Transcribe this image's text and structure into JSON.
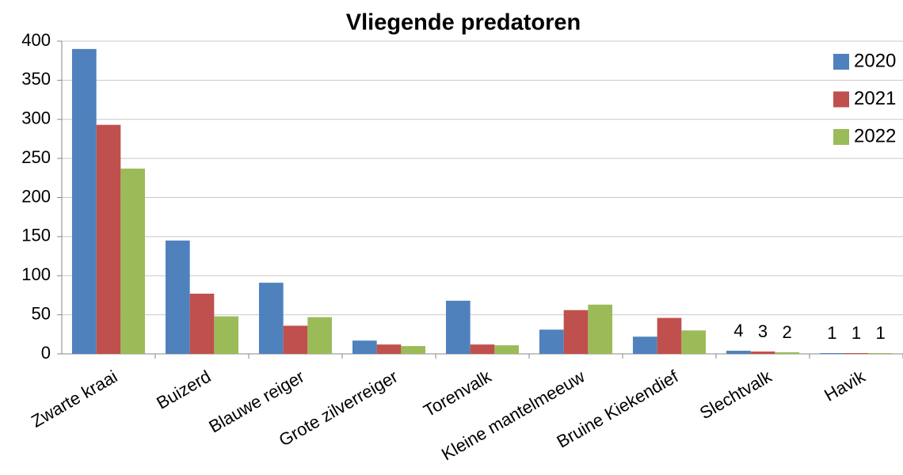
{
  "chart_data": {
    "type": "bar",
    "title": "Vliegende predatoren",
    "categories": [
      "Zwarte kraai",
      "Buizerd",
      "Blauwe reiger",
      "Grote zilverreiger",
      "Torenvalk",
      "Kleine mantelmeeuw",
      "Bruine Kiekendief",
      "Slechtvalk",
      "Havik"
    ],
    "series": [
      {
        "name": "2020",
        "color": "#4f81bd",
        "values": [
          390,
          145,
          91,
          17,
          68,
          31,
          22,
          4,
          1
        ],
        "value_labels": [
          null,
          null,
          null,
          null,
          null,
          null,
          null,
          "4",
          "1"
        ]
      },
      {
        "name": "2021",
        "color": "#c0504d",
        "values": [
          293,
          77,
          36,
          12,
          12,
          56,
          46,
          3,
          1
        ],
        "value_labels": [
          null,
          null,
          null,
          null,
          null,
          null,
          null,
          "3",
          "1"
        ]
      },
      {
        "name": "2022",
        "color": "#9bbb59",
        "values": [
          237,
          48,
          47,
          10,
          11,
          63,
          30,
          2,
          1
        ],
        "value_labels": [
          null,
          null,
          null,
          null,
          null,
          null,
          null,
          "2",
          "1"
        ]
      }
    ],
    "ylim": [
      0,
      400
    ],
    "yticks": [
      0,
      50,
      100,
      150,
      200,
      250,
      300,
      350,
      400
    ],
    "grid": true,
    "legend": "top-right"
  }
}
